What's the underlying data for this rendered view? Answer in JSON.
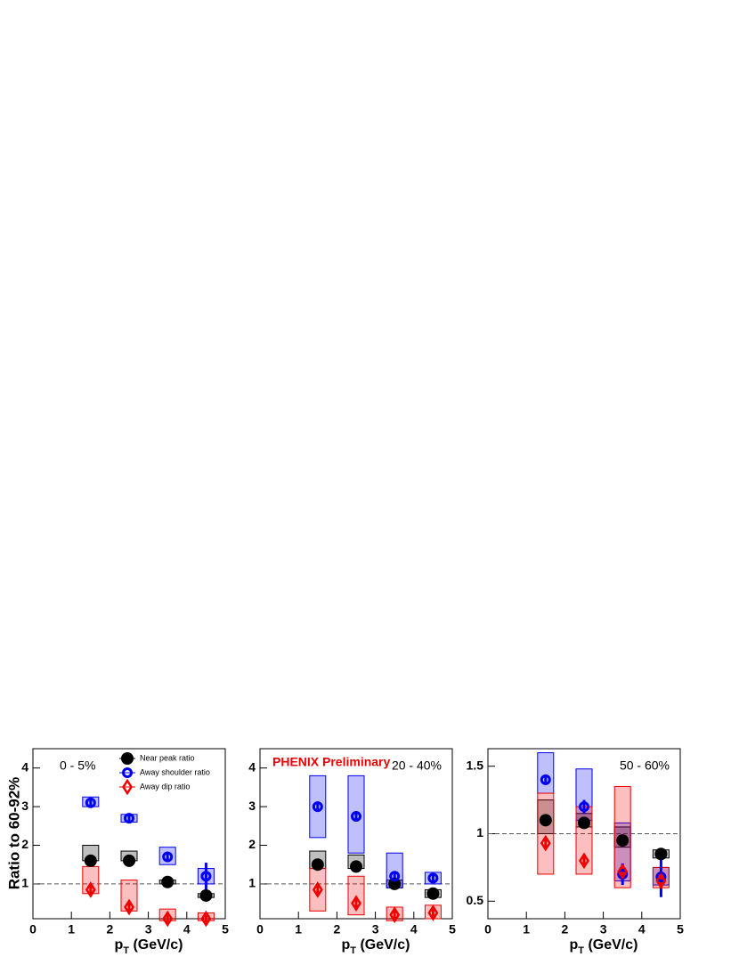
{
  "ylabel": "Ratio to 60-92%",
  "chart_data": [
    {
      "type": "scatter",
      "label": "0 - 5%",
      "label_corner": "top-left",
      "legend": true,
      "xlabel": [
        "p",
        "T",
        " (GeV/c)"
      ],
      "xlim": [
        0,
        5
      ],
      "xticks": [
        0,
        1,
        2,
        3,
        4,
        5
      ],
      "ylim": [
        0.1,
        4.5
      ],
      "yticks": [
        1,
        2,
        3,
        4
      ],
      "reference_line": 1,
      "x": [
        1.5,
        2.5,
        3.5,
        4.5
      ],
      "series": [
        {
          "name": "Near peak ratio",
          "color": "#000000",
          "marker": "circle",
          "values": [
            1.6,
            1.6,
            1.05,
            0.7
          ],
          "errors": [
            0.05,
            0.05,
            0.04,
            0.05
          ],
          "sys": [
            [
              1.6,
              2.0
            ],
            [
              1.6,
              1.85
            ],
            [
              1.0,
              1.1
            ],
            [
              0.65,
              0.75
            ]
          ]
        },
        {
          "name": "Away shoulder ratio",
          "color": "#0000ee",
          "marker": "open-circle",
          "values": [
            3.1,
            2.7,
            1.7,
            1.2
          ],
          "errors": [
            0.08,
            0.08,
            0.1,
            0.35
          ],
          "sys": [
            [
              3.0,
              3.25
            ],
            [
              2.6,
              2.8
            ],
            [
              1.5,
              1.95
            ],
            [
              1.0,
              1.4
            ]
          ]
        },
        {
          "name": "Away dip ratio",
          "color": "#ee0000",
          "marker": "open-diamond",
          "values": [
            0.85,
            0.4,
            0.1,
            0.1
          ],
          "errors": [
            0.1,
            0.1,
            0.1,
            0.1
          ],
          "sys": [
            [
              0.75,
              1.45
            ],
            [
              0.3,
              1.1
            ],
            [
              0.05,
              0.35
            ],
            [
              0.05,
              0.25
            ]
          ]
        }
      ]
    },
    {
      "type": "scatter",
      "label": "20 - 40%",
      "label_corner": "top-right",
      "annotation": "PHENIX Preliminary",
      "annotation_color": "#ee0000",
      "xlabel": [
        "p",
        "T",
        " (GeV/c)"
      ],
      "xlim": [
        0,
        5
      ],
      "xticks": [
        0,
        1,
        2,
        3,
        4,
        5
      ],
      "ylim": [
        0.1,
        4.5
      ],
      "yticks": [
        1,
        2,
        3,
        4
      ],
      "reference_line": 1,
      "x": [
        1.5,
        2.5,
        3.5,
        4.5
      ],
      "series": [
        {
          "name": "Near peak ratio",
          "color": "#000000",
          "marker": "circle",
          "values": [
            1.5,
            1.45,
            1.0,
            0.75
          ],
          "errors": [
            0.05,
            0.05,
            0.04,
            0.05
          ],
          "sys": [
            [
              1.4,
              1.85
            ],
            [
              1.4,
              1.75
            ],
            [
              0.9,
              1.1
            ],
            [
              0.65,
              0.85
            ]
          ]
        },
        {
          "name": "Away shoulder ratio",
          "color": "#0000ee",
          "marker": "open-circle",
          "values": [
            3.0,
            2.75,
            1.2,
            1.15
          ],
          "errors": [
            0.1,
            0.1,
            0.08,
            0.08
          ],
          "sys": [
            [
              2.2,
              3.8
            ],
            [
              1.8,
              3.8
            ],
            [
              0.9,
              1.8
            ],
            [
              1.0,
              1.3
            ]
          ]
        },
        {
          "name": "Away dip ratio",
          "color": "#ee0000",
          "marker": "open-diamond",
          "values": [
            0.85,
            0.5,
            0.2,
            0.25
          ],
          "errors": [
            0.1,
            0.1,
            0.1,
            0.1
          ],
          "sys": [
            [
              0.3,
              1.4
            ],
            [
              0.2,
              1.2
            ],
            [
              0.05,
              0.4
            ],
            [
              0.1,
              0.45
            ]
          ]
        }
      ]
    },
    {
      "type": "scatter",
      "label": "50 - 60%",
      "label_corner": "top-right",
      "xlabel": [
        "p",
        "T",
        " (GeV/c)"
      ],
      "xlim": [
        0,
        5
      ],
      "xticks": [
        0,
        1,
        2,
        3,
        4,
        5
      ],
      "ylim": [
        0.37,
        1.63
      ],
      "yticks": [
        0.5,
        1,
        1.5
      ],
      "reference_line": 1,
      "x": [
        1.5,
        2.5,
        3.5,
        4.5
      ],
      "series": [
        {
          "name": "Near peak ratio",
          "color": "#000000",
          "marker": "circle",
          "values": [
            1.1,
            1.08,
            0.95,
            0.85
          ],
          "errors": [
            0.02,
            0.02,
            0.02,
            0.02
          ],
          "sys": [
            [
              1.0,
              1.25
            ],
            [
              1.05,
              1.15
            ],
            [
              0.9,
              1.05
            ],
            [
              0.82,
              0.88
            ]
          ]
        },
        {
          "name": "Away shoulder ratio",
          "color": "#0000ee",
          "marker": "open-circle",
          "values": [
            1.4,
            1.2,
            0.7,
            0.68
          ],
          "errors": [
            0.02,
            0.05,
            0.08,
            0.15
          ],
          "sys": [
            [
              1.3,
              1.6
            ],
            [
              1.1,
              1.48
            ],
            [
              0.65,
              1.08
            ],
            [
              0.62,
              0.75
            ]
          ]
        },
        {
          "name": "Away dip ratio",
          "color": "#ee0000",
          "marker": "open-diamond",
          "values": [
            0.93,
            0.8,
            0.72,
            0.65
          ],
          "errors": [
            0.03,
            0.03,
            0.03,
            0.03
          ],
          "sys": [
            [
              0.7,
              1.3
            ],
            [
              0.7,
              1.2
            ],
            [
              0.6,
              1.35
            ],
            [
              0.6,
              0.75
            ]
          ]
        }
      ]
    }
  ]
}
